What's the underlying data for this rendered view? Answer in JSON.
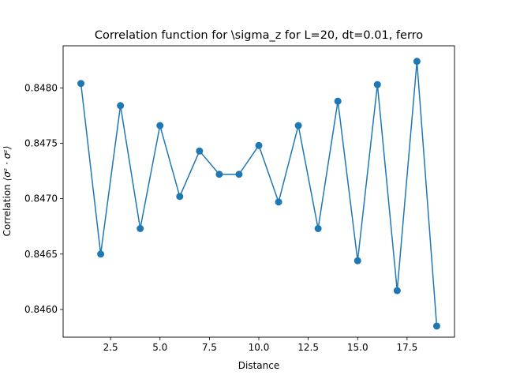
{
  "chart_data": {
    "type": "line",
    "title": "Correlation function for \\sigma_z for L=20, dt=0.01, ferro",
    "xlabel": "Distance",
    "ylabel_text": "Correlation ",
    "ylabel_math": "⟨σᶻ · σᶻ⟩",
    "xlim": [
      0.1,
      19.9
    ],
    "ylim": [
      0.84575,
      0.84838
    ],
    "xticks": [
      2.5,
      5.0,
      7.5,
      10.0,
      12.5,
      15.0,
      17.5
    ],
    "xtick_labels": [
      "2.5",
      "5.0",
      "7.5",
      "10.0",
      "12.5",
      "15.0",
      "17.5"
    ],
    "yticks": [
      0.846,
      0.8465,
      0.847,
      0.8475,
      0.848
    ],
    "ytick_labels": [
      "0.8460",
      "0.8465",
      "0.8470",
      "0.8475",
      "0.8480"
    ],
    "grid": false,
    "series": [
      {
        "color": "#1f77b4",
        "marker": "circle",
        "x": [
          1,
          2,
          3,
          4,
          5,
          6,
          7,
          8,
          9,
          10,
          11,
          12,
          13,
          14,
          15,
          16,
          17,
          18,
          19
        ],
        "y": [
          0.84804,
          0.8465,
          0.84784,
          0.84673,
          0.84766,
          0.84702,
          0.84743,
          0.84722,
          0.84722,
          0.84748,
          0.84697,
          0.84766,
          0.84673,
          0.84788,
          0.84644,
          0.84803,
          0.84617,
          0.84824,
          0.84585
        ]
      }
    ]
  }
}
